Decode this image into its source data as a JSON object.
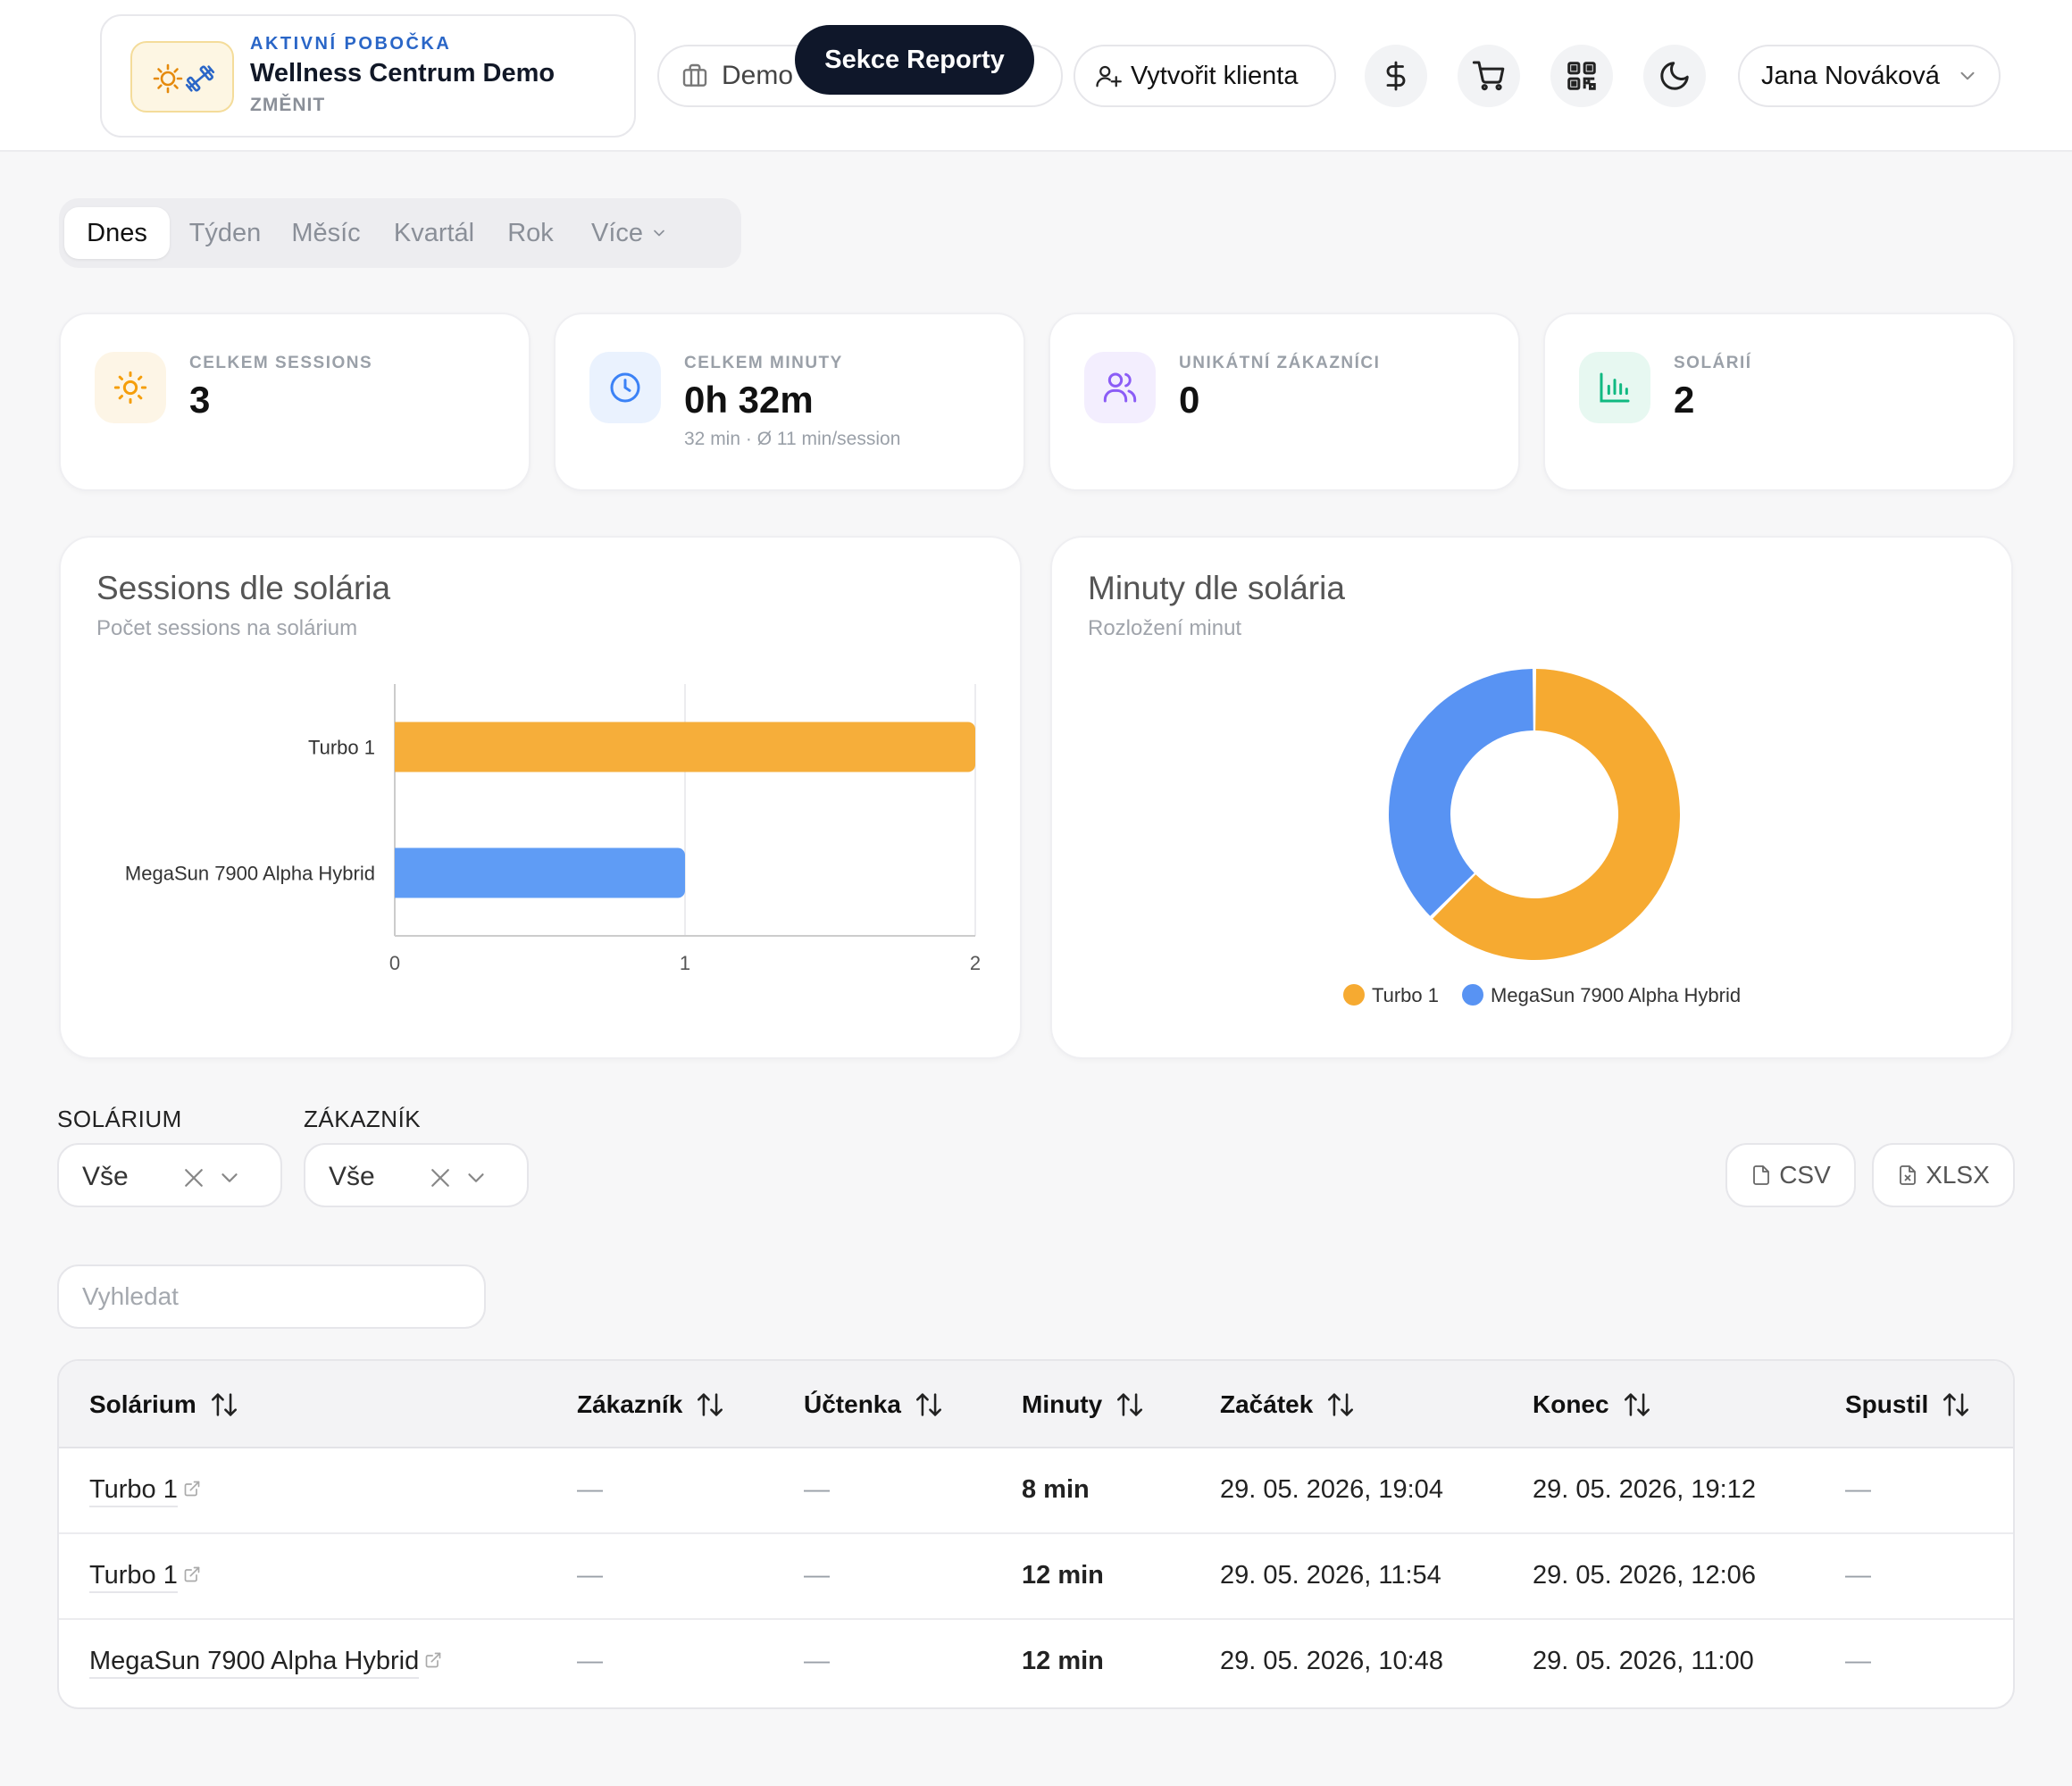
{
  "header": {
    "branch": {
      "caption": "AKTIVNÍ POBOČKA",
      "name": "Wellness Centrum Demo",
      "change_label": "ZMĚNIT"
    },
    "demo_label": "Demo",
    "tooltip": "Sekce Reporty",
    "create_client_label": "Vytvořit klienta",
    "user_name": "Jana Nováková",
    "icons": [
      "dollar-icon",
      "cart-icon",
      "qr-code-icon",
      "moon-icon"
    ]
  },
  "period_tabs": [
    {
      "label": "Dnes",
      "active": true
    },
    {
      "label": "Týden",
      "active": false
    },
    {
      "label": "Měsíc",
      "active": false
    },
    {
      "label": "Kvartál",
      "active": false
    },
    {
      "label": "Rok",
      "active": false
    },
    {
      "label": "Více",
      "active": false
    }
  ],
  "stats": [
    {
      "label": "CELKEM SESSIONS",
      "value": "3",
      "sub": "",
      "icon": "sun-icon",
      "color": "#f59e0b"
    },
    {
      "label": "CELKEM MINUTY",
      "value": "0h 32m",
      "sub": "32 min · Ø 11 min/session",
      "icon": "clock-icon",
      "color": "#3b82f6"
    },
    {
      "label": "UNIKÁTNÍ ZÁKAZNÍCI",
      "value": "0",
      "sub": "",
      "icon": "users-icon",
      "color": "#8b5cf6"
    },
    {
      "label": "SOLÁRIÍ",
      "value": "2",
      "sub": "",
      "icon": "bar-chart-icon",
      "color": "#10b981"
    }
  ],
  "chart_data": [
    {
      "type": "bar",
      "orientation": "horizontal",
      "title": "Sessions dle solária",
      "subtitle": "Počet sessions na solárium",
      "categories": [
        "Turbo 1",
        "MegaSun 7900 Alpha Hybrid"
      ],
      "values": [
        2,
        1
      ],
      "colors": [
        "#f6ae3a",
        "#5f9cf5"
      ],
      "xlim": [
        0,
        2
      ],
      "xticks": [
        "0",
        "1",
        "2"
      ],
      "grid": true
    },
    {
      "type": "pie",
      "style": "donut",
      "title": "Minuty dle solária",
      "subtitle": "Rozložení minut",
      "labels": [
        "Turbo 1",
        "MegaSun 7900 Alpha Hybrid"
      ],
      "values": [
        20,
        12
      ],
      "colors": [
        "#f6aa31",
        "#5893f3"
      ],
      "legend": "bottom"
    }
  ],
  "filters": {
    "solarium": {
      "label": "SOLÁRIUM",
      "value": "Vše"
    },
    "customer": {
      "label": "ZÁKAZNÍK",
      "value": "Vše"
    },
    "export_csv": "CSV",
    "export_xlsx": "XLSX"
  },
  "search": {
    "placeholder": "Vyhledat",
    "value": ""
  },
  "table": {
    "columns": [
      "Solárium",
      "Zákazník",
      "Účtenka",
      "Minuty",
      "Začátek",
      "Konec",
      "Spustil"
    ],
    "rows": [
      {
        "solarium": "Turbo 1",
        "customer": "—",
        "receipt": "—",
        "minutes": "8 min",
        "start": "29. 05. 2026, 19:04",
        "end": "29. 05. 2026, 19:12",
        "started_by": "—"
      },
      {
        "solarium": "Turbo 1",
        "customer": "—",
        "receipt": "—",
        "minutes": "12 min",
        "start": "29. 05. 2026, 11:54",
        "end": "29. 05. 2026, 12:06",
        "started_by": "—"
      },
      {
        "solarium": "MegaSun 7900 Alpha Hybrid",
        "customer": "—",
        "receipt": "—",
        "minutes": "12 min",
        "start": "29. 05. 2026, 10:48",
        "end": "29. 05. 2026, 11:00",
        "started_by": "—"
      }
    ]
  }
}
